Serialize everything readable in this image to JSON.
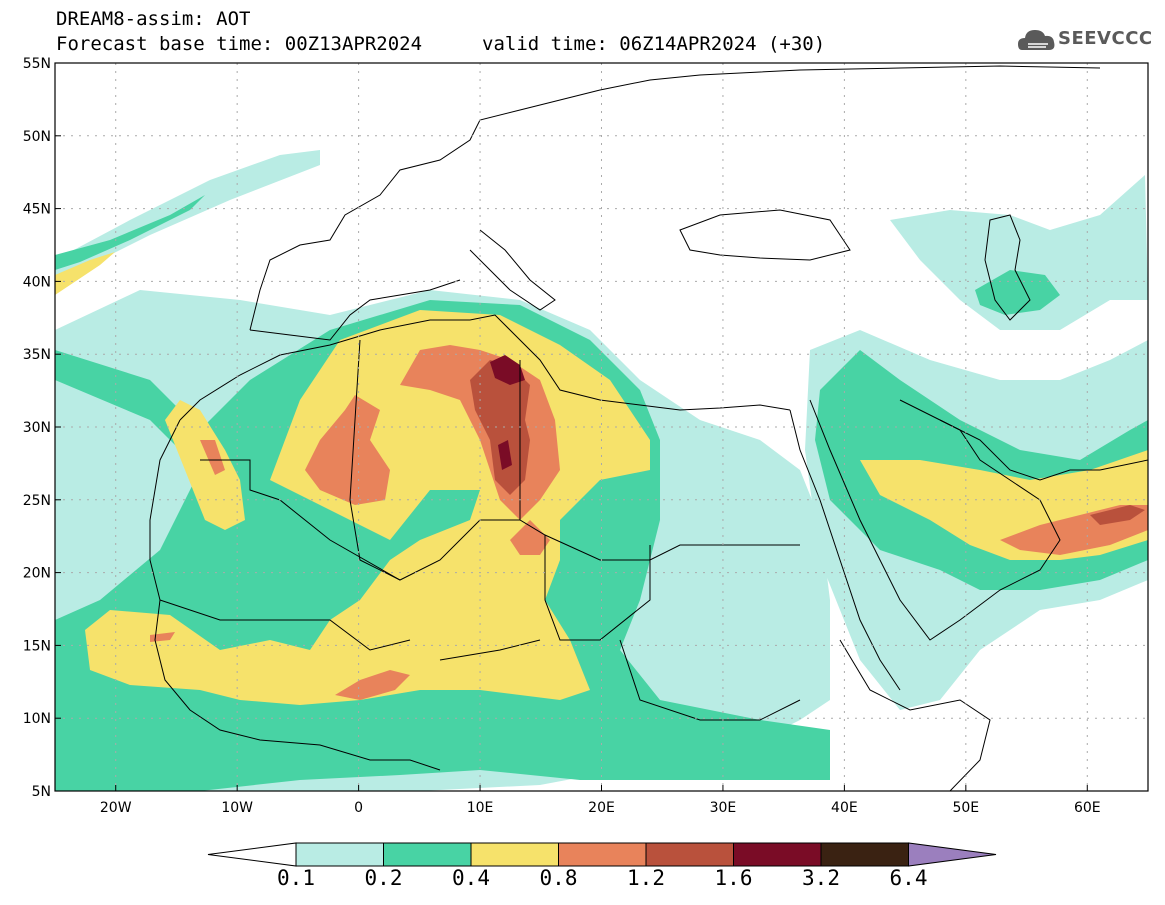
{
  "header": {
    "title_line_1": "DREAM8-assim: AOT",
    "title_line_2": "Forecast base time: 00Z13APR2024",
    "valid_time": "valid time: 06Z14APR2024 (+30)",
    "logo_text": "SEEVCCC"
  },
  "map": {
    "lon_labels": [
      "20W",
      "10W",
      "0",
      "10E",
      "20E",
      "30E",
      "40E",
      "50E",
      "60E"
    ],
    "lat_labels": [
      "55N",
      "50N",
      "45N",
      "40N",
      "35N",
      "30N",
      "25N",
      "20N",
      "15N",
      "10N",
      "5N"
    ],
    "lon_range": [
      -25,
      65
    ],
    "lat_range": [
      5,
      55
    ],
    "variable": "AOT"
  },
  "colorbar": {
    "labels": [
      "0.1",
      "0.2",
      "0.4",
      "0.8",
      "1.2",
      "1.6",
      "3.2",
      "6.4"
    ],
    "colors": [
      "#b9ece4",
      "#48d3a4",
      "#f6e26b",
      "#e8835b",
      "#b9513c",
      "#7a0c26",
      "#3a2212",
      "#9b7fbe"
    ]
  }
}
